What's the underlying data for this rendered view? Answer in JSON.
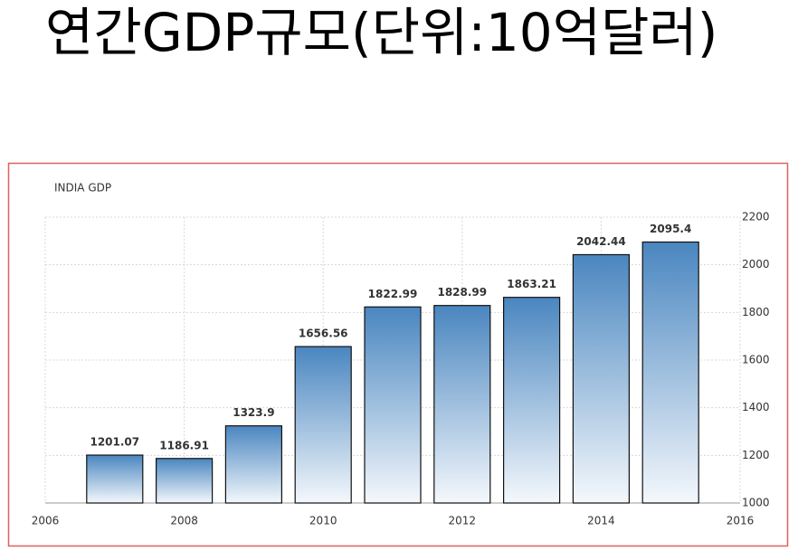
{
  "page_title": "연간GDP규모(단위:10억달러)",
  "chart_data": {
    "type": "bar",
    "title": "INDIA GDP",
    "x": [
      2007,
      2008,
      2009,
      2010,
      2011,
      2012,
      2013,
      2014,
      2015
    ],
    "values": [
      1201.07,
      1186.91,
      1323.9,
      1656.56,
      1822.99,
      1828.99,
      1863.21,
      2042.44,
      2095.4
    ],
    "color": "#4a86c0",
    "xlim": [
      2006,
      2016
    ],
    "xticks": [
      2006,
      2008,
      2010,
      2012,
      2014,
      2016
    ],
    "ylim": [
      1000,
      2200
    ],
    "yticks": [
      1000,
      1200,
      1400,
      1600,
      1800,
      2000,
      2200
    ],
    "grid": true
  }
}
